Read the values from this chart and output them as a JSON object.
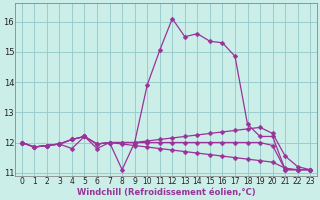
{
  "xlabel": "Windchill (Refroidissement éolien,°C)",
  "background_color": "#cceee8",
  "line_color": "#993399",
  "grid_color": "#99cccc",
  "x": [
    0,
    1,
    2,
    3,
    4,
    5,
    6,
    7,
    8,
    9,
    10,
    11,
    12,
    13,
    14,
    15,
    16,
    17,
    18,
    19,
    20,
    21,
    22,
    23
  ],
  "series1": [
    12.0,
    11.85,
    11.9,
    11.95,
    12.1,
    12.2,
    11.95,
    12.0,
    11.1,
    12.0,
    13.9,
    15.05,
    16.1,
    15.5,
    15.6,
    15.35,
    15.3,
    14.85,
    12.6,
    12.2,
    12.2,
    11.1,
    11.1,
    11.1
  ],
  "series2": [
    12.0,
    11.85,
    11.9,
    11.95,
    12.1,
    12.2,
    11.95,
    12.0,
    12.0,
    12.0,
    12.05,
    12.1,
    12.15,
    12.2,
    12.25,
    12.3,
    12.35,
    12.4,
    12.45,
    12.5,
    12.3,
    11.55,
    11.2,
    11.1
  ],
  "series3": [
    12.0,
    11.85,
    11.9,
    11.95,
    12.1,
    12.2,
    11.95,
    12.0,
    11.95,
    11.9,
    11.85,
    11.8,
    11.75,
    11.7,
    11.65,
    11.6,
    11.55,
    11.5,
    11.45,
    11.4,
    11.35,
    11.15,
    11.1,
    11.1
  ],
  "series4": [
    12.0,
    11.85,
    11.9,
    11.95,
    11.8,
    12.2,
    11.8,
    12.0,
    12.0,
    12.0,
    12.0,
    12.0,
    12.0,
    12.0,
    12.0,
    12.0,
    12.0,
    12.0,
    12.0,
    12.0,
    11.9,
    11.1,
    11.1,
    11.1
  ],
  "ylim": [
    10.9,
    16.6
  ],
  "xlim": [
    -0.5,
    23.5
  ],
  "yticks": [
    11,
    12,
    13,
    14,
    15,
    16
  ],
  "xticks": [
    0,
    1,
    2,
    3,
    4,
    5,
    6,
    7,
    8,
    9,
    10,
    11,
    12,
    13,
    14,
    15,
    16,
    17,
    18,
    19,
    20,
    21,
    22,
    23
  ],
  "markersize": 2.5,
  "linewidth": 0.9,
  "tick_fontsize": 5.5,
  "xlabel_fontsize": 6.0
}
